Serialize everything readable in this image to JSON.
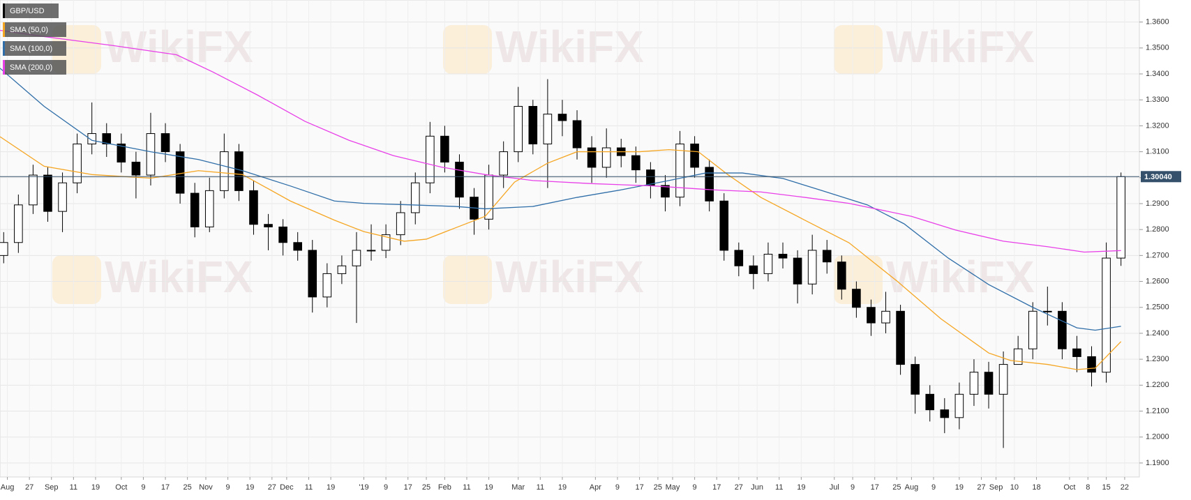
{
  "chart_data": {
    "type": "candlestick",
    "watermark": "WikiFX",
    "ylim": [
      1.1846,
      1.3685
    ],
    "xlim": [
      0,
      310
    ],
    "grid": true,
    "yticks": [
      {
        "value": 1.19,
        "label": "1.1900"
      },
      {
        "value": 1.2,
        "label": "1.2000"
      },
      {
        "value": 1.21,
        "label": "1.2100"
      },
      {
        "value": 1.22,
        "label": "1.2200"
      },
      {
        "value": 1.23,
        "label": "1.2300"
      },
      {
        "value": 1.24,
        "label": "1.2400"
      },
      {
        "value": 1.25,
        "label": "1.2500"
      },
      {
        "value": 1.26,
        "label": "1.2600"
      },
      {
        "value": 1.27,
        "label": "1.2700"
      },
      {
        "value": 1.28,
        "label": "1.2800"
      },
      {
        "value": 1.29,
        "label": "1.2900"
      },
      {
        "value": 1.3,
        "label": "1.3000"
      },
      {
        "value": 1.31,
        "label": "1.3100"
      },
      {
        "value": 1.32,
        "label": "1.3200"
      },
      {
        "value": 1.33,
        "label": "1.3300"
      },
      {
        "value": 1.34,
        "label": "1.3400"
      },
      {
        "value": 1.35,
        "label": "1.3500"
      },
      {
        "value": 1.36,
        "label": "1.3600"
      }
    ],
    "xticks": [
      {
        "value": 2,
        "label": "Aug"
      },
      {
        "value": 8,
        "label": "27"
      },
      {
        "value": 14,
        "label": "Sep"
      },
      {
        "value": 20,
        "label": "11"
      },
      {
        "value": 26,
        "label": "19"
      },
      {
        "value": 33,
        "label": "Oct"
      },
      {
        "value": 39,
        "label": "9"
      },
      {
        "value": 45,
        "label": "17"
      },
      {
        "value": 51,
        "label": "25"
      },
      {
        "value": 56,
        "label": "Nov"
      },
      {
        "value": 62,
        "label": "9"
      },
      {
        "value": 68,
        "label": "19"
      },
      {
        "value": 74,
        "label": "27"
      },
      {
        "value": 78,
        "label": "Dec"
      },
      {
        "value": 84,
        "label": "11"
      },
      {
        "value": 90,
        "label": "19"
      },
      {
        "value": 99,
        "label": "'19"
      },
      {
        "value": 105,
        "label": "9"
      },
      {
        "value": 111,
        "label": "17"
      },
      {
        "value": 116,
        "label": "25"
      },
      {
        "value": 121,
        "label": "Feb"
      },
      {
        "value": 127,
        "label": "11"
      },
      {
        "value": 133,
        "label": "19"
      },
      {
        "value": 141,
        "label": "Mar"
      },
      {
        "value": 147,
        "label": "11"
      },
      {
        "value": 153,
        "label": "19"
      },
      {
        "value": 162,
        "label": "Apr"
      },
      {
        "value": 168,
        "label": "9"
      },
      {
        "value": 174,
        "label": "17"
      },
      {
        "value": 179,
        "label": "25"
      },
      {
        "value": 183,
        "label": "May"
      },
      {
        "value": 189,
        "label": "9"
      },
      {
        "value": 195,
        "label": "17"
      },
      {
        "value": 201,
        "label": "27"
      },
      {
        "value": 206,
        "label": "Jun"
      },
      {
        "value": 212,
        "label": "11"
      },
      {
        "value": 218,
        "label": "19"
      },
      {
        "value": 227,
        "label": "Jul"
      },
      {
        "value": 232,
        "label": "9"
      },
      {
        "value": 238,
        "label": "17"
      },
      {
        "value": 244,
        "label": "25"
      },
      {
        "value": 248,
        "label": "Aug"
      },
      {
        "value": 254,
        "label": "9"
      },
      {
        "value": 261,
        "label": "19"
      },
      {
        "value": 267,
        "label": "27"
      },
      {
        "value": 271,
        "label": "Sep"
      },
      {
        "value": 276,
        "label": "10"
      },
      {
        "value": 282,
        "label": "18"
      },
      {
        "value": 291,
        "label": "Oct"
      },
      {
        "value": 296,
        "label": "8"
      },
      {
        "value": 301,
        "label": "15"
      },
      {
        "value": 306,
        "label": "22"
      }
    ],
    "current_price": {
      "value": 1.3004,
      "label": "1.30040",
      "color": "#34506b"
    },
    "series": [
      {
        "name": "GBP/USD",
        "color": "#000000",
        "up_color": "#ffffff",
        "x": [
          1,
          5,
          9,
          13,
          17,
          21,
          25,
          29,
          33,
          37,
          41,
          45,
          49,
          53,
          57,
          61,
          65,
          69,
          73,
          77,
          81,
          85,
          89,
          93,
          97,
          101,
          105,
          109,
          113,
          117,
          121,
          125,
          129,
          133,
          137,
          141,
          145,
          149,
          153,
          157,
          161,
          165,
          169,
          173,
          177,
          181,
          185,
          189,
          193,
          197,
          201,
          205,
          209,
          213,
          217,
          221,
          225,
          229,
          233,
          237,
          241,
          245,
          249,
          253,
          257,
          261,
          265,
          269,
          273,
          277,
          281,
          285,
          289,
          293,
          297,
          301,
          305
        ],
        "open": [
          1.27,
          1.275,
          1.2895,
          1.301,
          1.287,
          1.298,
          1.313,
          1.317,
          1.313,
          1.306,
          1.301,
          1.317,
          1.31,
          1.294,
          1.281,
          1.295,
          1.31,
          1.295,
          1.282,
          1.281,
          1.275,
          1.272,
          1.254,
          1.263,
          1.266,
          1.272,
          1.272,
          1.278,
          1.2865,
          1.298,
          1.316,
          1.306,
          1.2925,
          1.284,
          1.301,
          1.31,
          1.3275,
          1.313,
          1.3245,
          1.322,
          1.3115,
          1.304,
          1.3115,
          1.3085,
          1.303,
          1.297,
          1.2925,
          1.313,
          1.304,
          1.291,
          1.272,
          1.266,
          1.263,
          1.2705,
          1.269,
          1.259,
          1.272,
          1.2675,
          1.257,
          1.25,
          1.244,
          1.2485,
          1.228,
          1.2165,
          1.2105,
          1.2075,
          1.2165,
          1.225,
          1.2165,
          1.228,
          1.234,
          1.2485,
          1.2485,
          1.234,
          1.231,
          1.225,
          1.269
        ],
        "high": [
          1.279,
          1.2935,
          1.305,
          1.304,
          1.302,
          1.317,
          1.329,
          1.321,
          1.317,
          1.31,
          1.325,
          1.321,
          1.313,
          1.298,
          1.3,
          1.317,
          1.313,
          1.299,
          1.286,
          1.284,
          1.279,
          1.276,
          1.267,
          1.27,
          1.279,
          1.282,
          1.282,
          1.291,
          1.302,
          1.3215,
          1.32,
          1.309,
          1.296,
          1.305,
          1.314,
          1.335,
          1.33,
          1.338,
          1.33,
          1.326,
          1.316,
          1.319,
          1.315,
          1.312,
          1.306,
          1.301,
          1.318,
          1.316,
          1.307,
          1.294,
          1.275,
          1.27,
          1.275,
          1.275,
          1.272,
          1.278,
          1.276,
          1.27,
          1.26,
          1.253,
          1.256,
          1.251,
          1.231,
          1.22,
          1.215,
          1.221,
          1.23,
          1.229,
          1.233,
          1.239,
          1.252,
          1.258,
          1.252,
          1.239,
          1.235,
          1.275,
          1.302
        ],
        "low": [
          1.267,
          1.271,
          1.286,
          1.283,
          1.279,
          1.294,
          1.309,
          1.308,
          1.302,
          1.292,
          1.297,
          1.306,
          1.29,
          1.277,
          1.279,
          1.292,
          1.291,
          1.278,
          1.272,
          1.27,
          1.268,
          1.248,
          1.25,
          1.259,
          1.244,
          1.268,
          1.269,
          1.274,
          1.282,
          1.294,
          1.302,
          1.288,
          1.278,
          1.28,
          1.296,
          1.306,
          1.309,
          1.296,
          1.316,
          1.307,
          1.298,
          1.3,
          1.304,
          1.298,
          1.292,
          1.287,
          1.289,
          1.3,
          1.287,
          1.268,
          1.262,
          1.257,
          1.26,
          1.265,
          1.2515,
          1.255,
          1.263,
          1.253,
          1.246,
          1.239,
          1.24,
          1.224,
          1.209,
          1.206,
          1.2015,
          1.203,
          1.212,
          1.211,
          1.1958,
          1.228,
          1.23,
          1.243,
          1.23,
          1.225,
          1.2195,
          1.221,
          1.266
        ],
        "close": [
          1.275,
          1.2895,
          1.301,
          1.287,
          1.298,
          1.313,
          1.317,
          1.313,
          1.306,
          1.301,
          1.317,
          1.31,
          1.294,
          1.281,
          1.295,
          1.31,
          1.295,
          1.282,
          1.281,
          1.275,
          1.272,
          1.254,
          1.263,
          1.266,
          1.272,
          1.272,
          1.278,
          1.2865,
          1.298,
          1.316,
          1.306,
          1.2925,
          1.284,
          1.301,
          1.31,
          1.3275,
          1.313,
          1.3245,
          1.322,
          1.3115,
          1.304,
          1.3115,
          1.3085,
          1.303,
          1.297,
          1.2925,
          1.313,
          1.304,
          1.291,
          1.272,
          1.266,
          1.263,
          1.2705,
          1.269,
          1.259,
          1.272,
          1.2675,
          1.257,
          1.25,
          1.244,
          1.2485,
          1.228,
          1.2165,
          1.2105,
          1.2075,
          1.2165,
          1.225,
          1.2165,
          1.228,
          1.234,
          1.2485,
          1.2485,
          1.234,
          1.231,
          1.225,
          1.269,
          1.3004
        ]
      },
      {
        "name": "SMA (50,0)",
        "color": "#f5a623",
        "x": [
          0,
          12,
          25,
          41,
          54,
          66,
          79,
          91,
          99,
          110,
          116,
          124,
          132,
          140,
          149,
          157,
          165,
          174,
          182,
          190,
          198,
          207,
          219,
          231,
          244,
          256,
          269,
          275,
          285,
          293,
          298,
          305
        ],
        "values": [
          1.3158,
          1.3044,
          1.3012,
          1.2998,
          1.3027,
          1.3012,
          1.291,
          1.2836,
          1.2792,
          1.2755,
          1.2763,
          1.2807,
          1.2851,
          1.2983,
          1.3056,
          1.31,
          1.31,
          1.31,
          1.3108,
          1.31,
          1.3012,
          1.2924,
          1.2836,
          1.2749,
          1.2602,
          1.2456,
          1.2324,
          1.2295,
          1.228,
          1.226,
          1.2266,
          1.2368
        ]
      },
      {
        "name": "SMA (100,0)",
        "color": "#2f6ea8",
        "x": [
          0,
          12,
          25,
          41,
          54,
          66,
          79,
          91,
          99,
          112,
          124,
          132,
          145,
          157,
          169,
          182,
          192,
          202,
          213,
          223,
          236,
          246,
          258,
          269,
          281,
          293,
          298,
          305
        ],
        "values": [
          1.3422,
          1.3275,
          1.3144,
          1.31,
          1.307,
          1.3027,
          1.2968,
          1.291,
          1.2901,
          1.2895,
          1.2889,
          1.288,
          1.2889,
          1.2924,
          1.2953,
          1.2989,
          1.3018,
          1.3018,
          1.2997,
          1.2953,
          1.2895,
          1.2822,
          1.269,
          1.2588,
          1.25,
          1.2421,
          1.2412,
          1.2427
        ]
      },
      {
        "name": "SMA (200,0)",
        "color": "#e83fe8",
        "x": [
          0,
          12,
          31,
          48,
          58,
          70,
          83,
          95,
          107,
          120,
          132,
          145,
          161,
          178,
          194,
          207,
          219,
          231,
          248,
          260,
          273,
          285,
          295,
          305
        ],
        "values": [
          1.3568,
          1.3544,
          1.3509,
          1.3474,
          1.3407,
          1.3319,
          1.3217,
          1.3144,
          1.3085,
          1.3041,
          1.3012,
          1.2989,
          1.2977,
          1.2968,
          1.2953,
          1.2945,
          1.2924,
          1.2901,
          1.2851,
          1.2798,
          1.2755,
          1.2734,
          1.2713,
          1.2719
        ]
      }
    ]
  }
}
